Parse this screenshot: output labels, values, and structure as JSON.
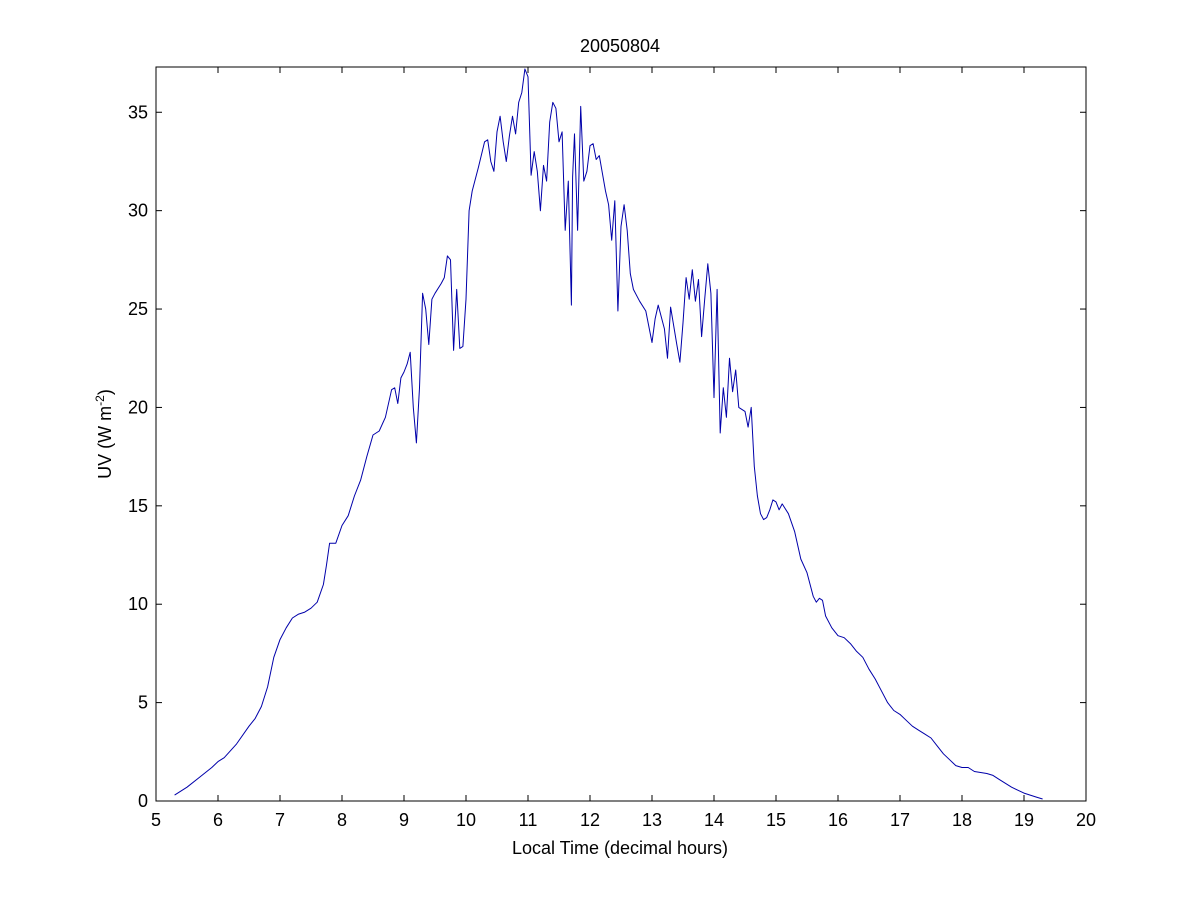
{
  "chart_data": {
    "type": "line",
    "title": "20050804",
    "xlabel": "Local Time (decimal hours)",
    "ylabel": "UV (W m",
    "ylabel_superscript": "-2",
    "ylabel_suffix": ")",
    "xlim": [
      5,
      20
    ],
    "ylim": [
      0,
      37.3
    ],
    "xticks": [
      5,
      6,
      7,
      8,
      9,
      10,
      11,
      12,
      13,
      14,
      15,
      16,
      17,
      18,
      19,
      20
    ],
    "yticks": [
      0,
      5,
      10,
      15,
      20,
      25,
      30,
      35
    ],
    "grid": false,
    "line_color": "#0000aa",
    "series": [
      {
        "points": [
          [
            5.3,
            0.3
          ],
          [
            5.5,
            0.7
          ],
          [
            5.7,
            1.2
          ],
          [
            5.9,
            1.7
          ],
          [
            6.0,
            2.0
          ],
          [
            6.1,
            2.2
          ],
          [
            6.3,
            2.9
          ],
          [
            6.5,
            3.8
          ],
          [
            6.6,
            4.2
          ],
          [
            6.7,
            4.8
          ],
          [
            6.8,
            5.8
          ],
          [
            6.9,
            7.3
          ],
          [
            7.0,
            8.2
          ],
          [
            7.1,
            8.8
          ],
          [
            7.2,
            9.3
          ],
          [
            7.3,
            9.5
          ],
          [
            7.4,
            9.6
          ],
          [
            7.5,
            9.8
          ],
          [
            7.6,
            10.1
          ],
          [
            7.7,
            11.0
          ],
          [
            7.75,
            12.0
          ],
          [
            7.8,
            13.1
          ],
          [
            7.9,
            13.1
          ],
          [
            8.0,
            14.0
          ],
          [
            8.1,
            14.5
          ],
          [
            8.2,
            15.5
          ],
          [
            8.3,
            16.3
          ],
          [
            8.4,
            17.5
          ],
          [
            8.5,
            18.6
          ],
          [
            8.6,
            18.8
          ],
          [
            8.7,
            19.5
          ],
          [
            8.8,
            20.9
          ],
          [
            8.85,
            21.0
          ],
          [
            8.9,
            20.2
          ],
          [
            8.95,
            21.5
          ],
          [
            9.0,
            21.8
          ],
          [
            9.05,
            22.2
          ],
          [
            9.1,
            22.8
          ],
          [
            9.15,
            20.0
          ],
          [
            9.2,
            18.2
          ],
          [
            9.25,
            21.0
          ],
          [
            9.3,
            25.8
          ],
          [
            9.35,
            25.0
          ],
          [
            9.4,
            23.2
          ],
          [
            9.45,
            25.5
          ],
          [
            9.5,
            25.8
          ],
          [
            9.6,
            26.3
          ],
          [
            9.65,
            26.6
          ],
          [
            9.7,
            27.7
          ],
          [
            9.75,
            27.5
          ],
          [
            9.8,
            22.9
          ],
          [
            9.85,
            26.0
          ],
          [
            9.9,
            23.0
          ],
          [
            9.95,
            23.1
          ],
          [
            10.0,
            25.5
          ],
          [
            10.05,
            30.0
          ],
          [
            10.1,
            31.0
          ],
          [
            10.2,
            32.2
          ],
          [
            10.3,
            33.5
          ],
          [
            10.35,
            33.6
          ],
          [
            10.4,
            32.5
          ],
          [
            10.45,
            32.0
          ],
          [
            10.5,
            34.0
          ],
          [
            10.55,
            34.8
          ],
          [
            10.6,
            33.5
          ],
          [
            10.65,
            32.5
          ],
          [
            10.7,
            33.8
          ],
          [
            10.75,
            34.8
          ],
          [
            10.8,
            33.9
          ],
          [
            10.85,
            35.5
          ],
          [
            10.9,
            36.0
          ],
          [
            10.95,
            37.2
          ],
          [
            11.0,
            36.8
          ],
          [
            11.05,
            31.8
          ],
          [
            11.1,
            33.0
          ],
          [
            11.15,
            32.0
          ],
          [
            11.2,
            30.0
          ],
          [
            11.25,
            32.3
          ],
          [
            11.3,
            31.5
          ],
          [
            11.35,
            34.5
          ],
          [
            11.4,
            35.5
          ],
          [
            11.45,
            35.2
          ],
          [
            11.5,
            33.5
          ],
          [
            11.55,
            34.0
          ],
          [
            11.6,
            29.0
          ],
          [
            11.65,
            31.5
          ],
          [
            11.7,
            25.2
          ],
          [
            11.72,
            31.7
          ],
          [
            11.75,
            33.9
          ],
          [
            11.8,
            29.0
          ],
          [
            11.85,
            35.3
          ],
          [
            11.9,
            31.5
          ],
          [
            11.95,
            32.0
          ],
          [
            12.0,
            33.3
          ],
          [
            12.05,
            33.4
          ],
          [
            12.1,
            32.6
          ],
          [
            12.15,
            32.8
          ],
          [
            12.2,
            31.9
          ],
          [
            12.25,
            31.0
          ],
          [
            12.3,
            30.3
          ],
          [
            12.35,
            28.5
          ],
          [
            12.4,
            30.5
          ],
          [
            12.45,
            24.9
          ],
          [
            12.5,
            29.2
          ],
          [
            12.55,
            30.3
          ],
          [
            12.6,
            29.0
          ],
          [
            12.65,
            26.8
          ],
          [
            12.7,
            26.0
          ],
          [
            12.8,
            25.4
          ],
          [
            12.9,
            24.9
          ],
          [
            13.0,
            23.3
          ],
          [
            13.05,
            24.5
          ],
          [
            13.1,
            25.2
          ],
          [
            13.2,
            24.0
          ],
          [
            13.25,
            22.5
          ],
          [
            13.3,
            25.1
          ],
          [
            13.4,
            23.2
          ],
          [
            13.45,
            22.3
          ],
          [
            13.5,
            24.3
          ],
          [
            13.55,
            26.6
          ],
          [
            13.6,
            25.5
          ],
          [
            13.65,
            27.0
          ],
          [
            13.7,
            25.4
          ],
          [
            13.75,
            26.5
          ],
          [
            13.8,
            23.6
          ],
          [
            13.85,
            25.5
          ],
          [
            13.9,
            27.3
          ],
          [
            13.95,
            25.8
          ],
          [
            14.0,
            20.5
          ],
          [
            14.05,
            26.0
          ],
          [
            14.1,
            18.7
          ],
          [
            14.15,
            21.0
          ],
          [
            14.2,
            19.5
          ],
          [
            14.25,
            22.5
          ],
          [
            14.3,
            20.8
          ],
          [
            14.35,
            21.9
          ],
          [
            14.4,
            20.0
          ],
          [
            14.5,
            19.8
          ],
          [
            14.55,
            19.0
          ],
          [
            14.6,
            20.0
          ],
          [
            14.65,
            17.0
          ],
          [
            14.7,
            15.5
          ],
          [
            14.75,
            14.6
          ],
          [
            14.8,
            14.3
          ],
          [
            14.85,
            14.4
          ],
          [
            14.9,
            14.8
          ],
          [
            14.95,
            15.3
          ],
          [
            15.0,
            15.2
          ],
          [
            15.05,
            14.8
          ],
          [
            15.1,
            15.1
          ],
          [
            15.2,
            14.6
          ],
          [
            15.3,
            13.7
          ],
          [
            15.4,
            12.3
          ],
          [
            15.5,
            11.6
          ],
          [
            15.6,
            10.4
          ],
          [
            15.65,
            10.1
          ],
          [
            15.7,
            10.3
          ],
          [
            15.75,
            10.2
          ],
          [
            15.8,
            9.4
          ],
          [
            15.9,
            8.8
          ],
          [
            16.0,
            8.4
          ],
          [
            16.1,
            8.3
          ],
          [
            16.2,
            8.0
          ],
          [
            16.3,
            7.6
          ],
          [
            16.4,
            7.3
          ],
          [
            16.5,
            6.7
          ],
          [
            16.6,
            6.2
          ],
          [
            16.7,
            5.6
          ],
          [
            16.8,
            5.0
          ],
          [
            16.9,
            4.6
          ],
          [
            17.0,
            4.4
          ],
          [
            17.1,
            4.1
          ],
          [
            17.2,
            3.8
          ],
          [
            17.3,
            3.6
          ],
          [
            17.4,
            3.4
          ],
          [
            17.5,
            3.2
          ],
          [
            17.6,
            2.8
          ],
          [
            17.7,
            2.4
          ],
          [
            17.8,
            2.1
          ],
          [
            17.9,
            1.8
          ],
          [
            18.0,
            1.7
          ],
          [
            18.1,
            1.7
          ],
          [
            18.2,
            1.5
          ],
          [
            18.3,
            1.45
          ],
          [
            18.4,
            1.4
          ],
          [
            18.5,
            1.3
          ],
          [
            18.6,
            1.1
          ],
          [
            18.7,
            0.9
          ],
          [
            18.8,
            0.7
          ],
          [
            18.9,
            0.55
          ],
          [
            19.0,
            0.4
          ],
          [
            19.1,
            0.3
          ],
          [
            19.2,
            0.2
          ],
          [
            19.3,
            0.1
          ]
        ]
      }
    ]
  }
}
